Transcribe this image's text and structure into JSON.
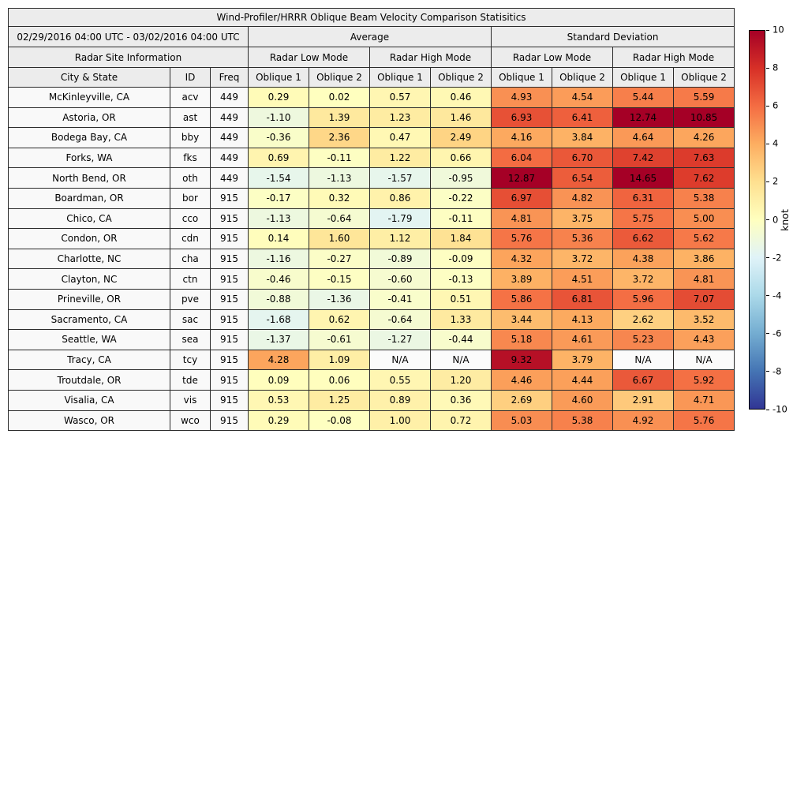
{
  "chart_data": {
    "type": "table",
    "title": "Wind-Profiler/HRRR Oblique Beam Velocity Comparison Statisitics",
    "period_label": "02/29/2016 04:00 UTC - 03/02/2016 04:00 UTC",
    "group_headers": [
      "Average",
      "Standard Deviation"
    ],
    "site_info_header": "Radar Site Information",
    "mode_headers": [
      "Radar Low Mode",
      "Radar High Mode",
      "Radar Low Mode",
      "Radar High Mode"
    ],
    "column_headers": [
      "City & State",
      "ID",
      "Freq",
      "Oblique 1",
      "Oblique 2",
      "Oblique 1",
      "Oblique 2",
      "Oblique 1",
      "Oblique 2",
      "Oblique 1",
      "Oblique 2"
    ],
    "na_text": "N/A",
    "na_color": "#fbfbfb",
    "rows": [
      {
        "city": "McKinleyville, CA",
        "id": "acv",
        "freq": "449",
        "values": [
          0.29,
          0.02,
          0.57,
          0.46,
          4.93,
          4.54,
          5.44,
          5.59
        ]
      },
      {
        "city": "Astoria, OR",
        "id": "ast",
        "freq": "449",
        "values": [
          -1.1,
          1.39,
          1.23,
          1.46,
          6.93,
          6.41,
          12.74,
          10.85
        ]
      },
      {
        "city": "Bodega Bay, CA",
        "id": "bby",
        "freq": "449",
        "values": [
          -0.36,
          2.36,
          0.47,
          2.49,
          4.16,
          3.84,
          4.64,
          4.26
        ]
      },
      {
        "city": "Forks, WA",
        "id": "fks",
        "freq": "449",
        "values": [
          0.69,
          -0.11,
          1.22,
          0.66,
          6.04,
          6.7,
          7.42,
          7.63
        ]
      },
      {
        "city": "North Bend, OR",
        "id": "oth",
        "freq": "449",
        "values": [
          -1.54,
          -1.13,
          -1.57,
          -0.95,
          12.87,
          6.54,
          14.65,
          7.62
        ]
      },
      {
        "city": "Boardman, OR",
        "id": "bor",
        "freq": "915",
        "values": [
          -0.17,
          0.32,
          0.86,
          -0.22,
          6.97,
          4.82,
          6.31,
          5.38
        ]
      },
      {
        "city": "Chico, CA",
        "id": "cco",
        "freq": "915",
        "values": [
          -1.13,
          -0.64,
          -1.79,
          -0.11,
          4.81,
          3.75,
          5.75,
          5.0
        ]
      },
      {
        "city": "Condon, OR",
        "id": "cdn",
        "freq": "915",
        "values": [
          0.14,
          1.6,
          1.12,
          1.84,
          5.76,
          5.36,
          6.62,
          5.62
        ]
      },
      {
        "city": "Charlotte, NC",
        "id": "cha",
        "freq": "915",
        "values": [
          -1.16,
          -0.27,
          -0.89,
          -0.09,
          4.32,
          3.72,
          4.38,
          3.86
        ]
      },
      {
        "city": "Clayton, NC",
        "id": "ctn",
        "freq": "915",
        "values": [
          -0.46,
          -0.15,
          -0.6,
          -0.13,
          3.89,
          4.51,
          3.72,
          4.81
        ]
      },
      {
        "city": "Prineville, OR",
        "id": "pve",
        "freq": "915",
        "values": [
          -0.88,
          -1.36,
          -0.41,
          0.51,
          5.86,
          6.81,
          5.96,
          7.07
        ]
      },
      {
        "city": "Sacramento, CA",
        "id": "sac",
        "freq": "915",
        "values": [
          -1.68,
          0.62,
          -0.64,
          1.33,
          3.44,
          4.13,
          2.62,
          3.52
        ]
      },
      {
        "city": "Seattle, WA",
        "id": "sea",
        "freq": "915",
        "values": [
          -1.37,
          -0.61,
          -1.27,
          -0.44,
          5.18,
          4.61,
          5.23,
          4.43
        ]
      },
      {
        "city": "Tracy, CA",
        "id": "tcy",
        "freq": "915",
        "values": [
          4.28,
          1.09,
          null,
          null,
          9.32,
          3.79,
          null,
          null
        ]
      },
      {
        "city": "Troutdale, OR",
        "id": "tde",
        "freq": "915",
        "values": [
          0.09,
          0.06,
          0.55,
          1.2,
          4.46,
          4.44,
          6.67,
          5.92
        ]
      },
      {
        "city": "Visalia, CA",
        "id": "vis",
        "freq": "915",
        "values": [
          0.53,
          1.25,
          0.89,
          0.36,
          2.69,
          4.6,
          2.91,
          4.71
        ]
      },
      {
        "city": "Wasco, OR",
        "id": "wco",
        "freq": "915",
        "values": [
          0.29,
          -0.08,
          1.0,
          0.72,
          5.03,
          5.38,
          4.92,
          5.76
        ]
      }
    ],
    "colorbar": {
      "label": "knot",
      "min": -10,
      "max": 10,
      "ticks": [
        10,
        8,
        6,
        4,
        2,
        0,
        -2,
        -4,
        -6,
        -8,
        -10
      ],
      "colormap": "RdYlBu_r",
      "colormap_stops": [
        "#313695",
        "#4575b4",
        "#74add1",
        "#abd9e9",
        "#e0f3f8",
        "#ffffbf",
        "#fee090",
        "#fdae61",
        "#f46d43",
        "#d73027",
        "#a50026"
      ]
    }
  }
}
